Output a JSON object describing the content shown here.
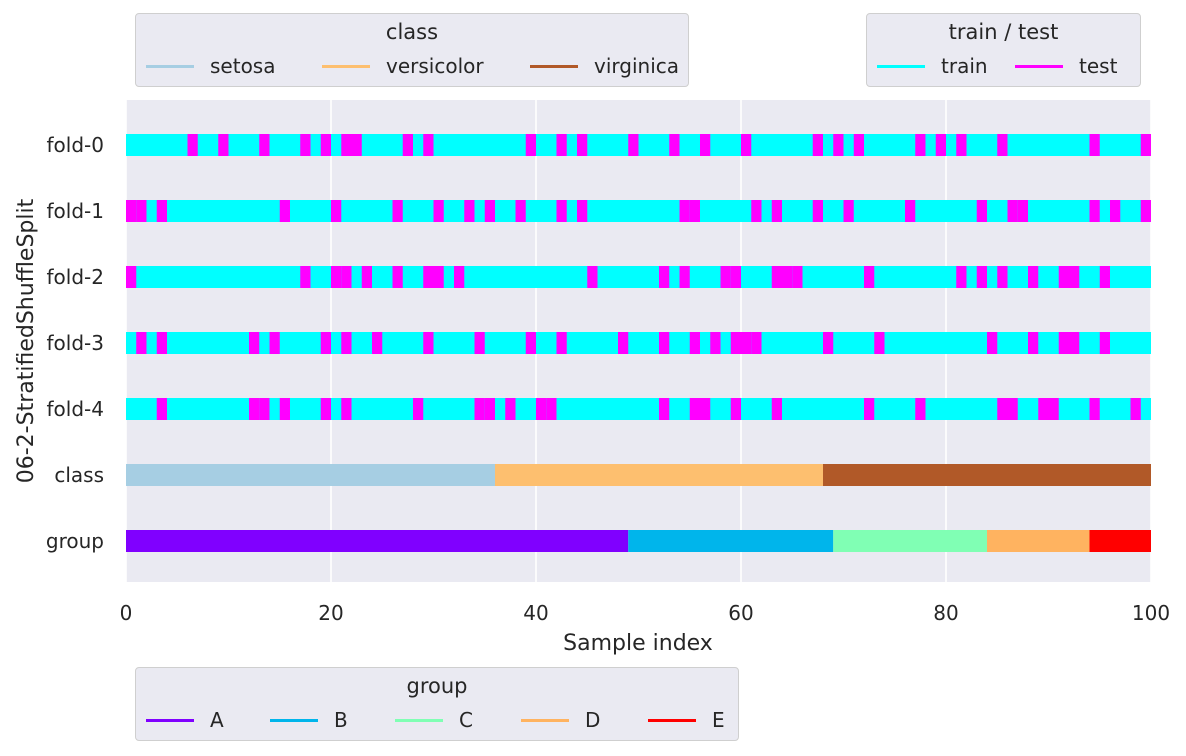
{
  "chart_data": {
    "type": "cross_validation_plot",
    "ylabel": "06-2-StratifiedShuffleSplit",
    "xlabel": "Sample index",
    "xlim": [
      0,
      100
    ],
    "xticks": [
      0,
      20,
      40,
      60,
      80,
      100
    ],
    "grid": true,
    "rows": [
      "fold-0",
      "fold-1",
      "fold-2",
      "fold-3",
      "fold-4",
      "class",
      "group"
    ],
    "split_colors": {
      "train": "#00ffff",
      "test": "#ff00ff"
    },
    "folds": [
      {
        "name": "fold-0",
        "test_indices": [
          6,
          9,
          13,
          17,
          19,
          21,
          22,
          27,
          29,
          39,
          42,
          44,
          49,
          53,
          56,
          60,
          67,
          69,
          71,
          77,
          79,
          81,
          85,
          94,
          99
        ]
      },
      {
        "name": "fold-1",
        "test_indices": [
          0,
          1,
          3,
          15,
          20,
          26,
          30,
          33,
          35,
          38,
          42,
          44,
          54,
          55,
          61,
          63,
          67,
          70,
          76,
          83,
          86,
          87,
          94,
          96,
          99
        ]
      },
      {
        "name": "fold-2",
        "test_indices": [
          0,
          17,
          20,
          21,
          23,
          26,
          29,
          30,
          32,
          45,
          52,
          54,
          58,
          59,
          63,
          64,
          65,
          72,
          81,
          83,
          85,
          88,
          91,
          92,
          95
        ]
      },
      {
        "name": "fold-3",
        "test_indices": [
          1,
          3,
          12,
          14,
          19,
          21,
          24,
          29,
          34,
          39,
          42,
          48,
          52,
          55,
          57,
          59,
          60,
          61,
          68,
          73,
          84,
          88,
          91,
          92,
          95
        ]
      },
      {
        "name": "fold-4",
        "test_indices": [
          3,
          12,
          13,
          15,
          19,
          21,
          28,
          34,
          35,
          37,
          40,
          41,
          52,
          55,
          56,
          59,
          63,
          72,
          77,
          85,
          86,
          89,
          90,
          94,
          98
        ]
      }
    ],
    "class": [
      {
        "label": "setosa",
        "start": 0,
        "end": 36,
        "color": "#a6cee3"
      },
      {
        "label": "versicolor",
        "start": 36,
        "end": 68,
        "color": "#fdbf6f"
      },
      {
        "label": "virginica",
        "start": 68,
        "end": 100,
        "color": "#b15928"
      }
    ],
    "group": [
      {
        "label": "A",
        "start": 0,
        "end": 49,
        "color": "#8000ff"
      },
      {
        "label": "B",
        "start": 49,
        "end": 69,
        "color": "#00b5eb"
      },
      {
        "label": "C",
        "start": 69,
        "end": 84,
        "color": "#80ffb4"
      },
      {
        "label": "D",
        "start": 84,
        "end": 94,
        "color": "#ffb360"
      },
      {
        "label": "E",
        "start": 94,
        "end": 100,
        "color": "#ff0000"
      }
    ],
    "legends": [
      {
        "id": "class",
        "title": "class",
        "placement": "top-left",
        "entries": [
          {
            "label": "setosa",
            "color": "#a6cee3"
          },
          {
            "label": "versicolor",
            "color": "#fdbf6f"
          },
          {
            "label": "virginica",
            "color": "#b15928"
          }
        ]
      },
      {
        "id": "split",
        "title": "train / test",
        "placement": "top-right",
        "entries": [
          {
            "label": "train",
            "color": "#00ffff"
          },
          {
            "label": "test",
            "color": "#ff00ff"
          }
        ]
      },
      {
        "id": "group",
        "title": "group",
        "placement": "bottom-left",
        "entries": [
          {
            "label": "A",
            "color": "#8000ff"
          },
          {
            "label": "B",
            "color": "#00b5eb"
          },
          {
            "label": "C",
            "color": "#80ffb4"
          },
          {
            "label": "D",
            "color": "#ffb360"
          },
          {
            "label": "E",
            "color": "#ff0000"
          }
        ]
      }
    ]
  }
}
